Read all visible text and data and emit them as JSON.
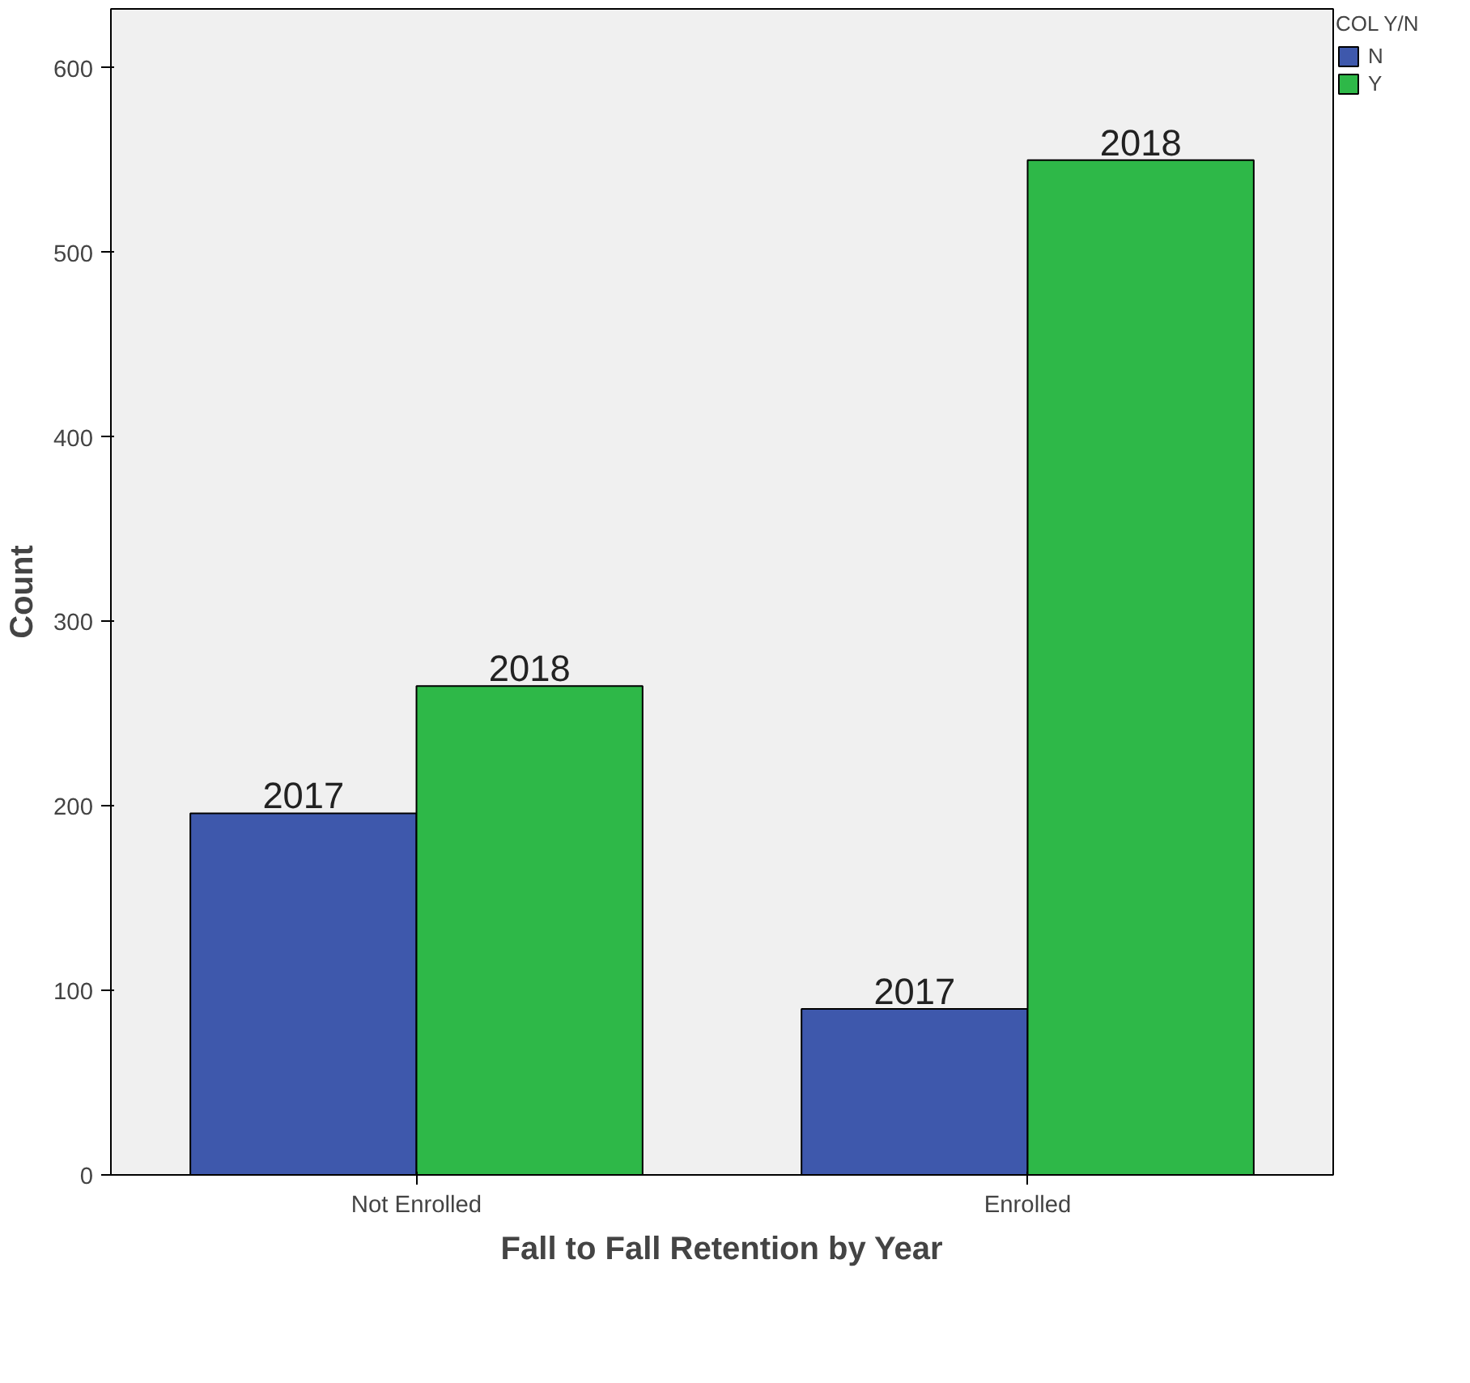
{
  "chart_data": {
    "type": "bar",
    "xlabel": "Fall to Fall Retention by Year",
    "ylabel": "Count",
    "legend_title": "COL Y/N",
    "categories": [
      "Not Enrolled",
      "Enrolled"
    ],
    "series": [
      {
        "name": "N",
        "color": "#3e58ac",
        "values": [
          196,
          90
        ]
      },
      {
        "name": "Y",
        "color": "#2eb848",
        "values": [
          265,
          550
        ]
      }
    ],
    "annotations": [
      {
        "text": "2017",
        "x": "Not Enrolled",
        "y": 196
      },
      {
        "text": "2018",
        "x": "Not Enrolled",
        "y": 265
      },
      {
        "text": "2017",
        "x": "Enrolled",
        "y": 90
      },
      {
        "text": "2018",
        "x": "Enrolled",
        "y": 550
      }
    ],
    "ylim": [
      0,
      632
    ],
    "yticks": [
      0,
      100,
      200,
      300,
      400,
      500,
      600
    ],
    "grid": false,
    "legend": "top right"
  }
}
